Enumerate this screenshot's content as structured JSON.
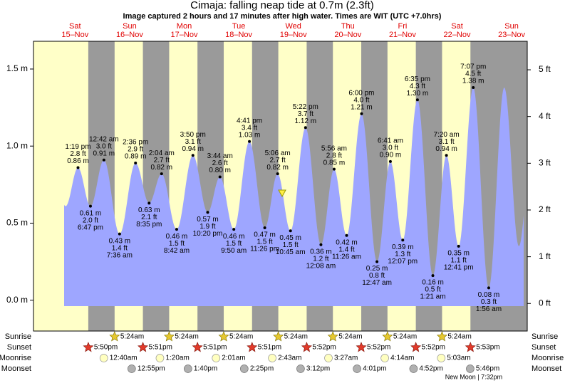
{
  "chart_data": {
    "type": "area",
    "title": "Cimaja: falling  neap tide at 0.7m (2.3ft)",
    "subtitle": "Image captured 2 hours and 17 minutes after high water. Times are WIT (UTC +7.0hrs)",
    "days": [
      {
        "name": "Sat",
        "date": "15–Nov"
      },
      {
        "name": "Sun",
        "date": "16–Nov"
      },
      {
        "name": "Mon",
        "date": "17–Nov"
      },
      {
        "name": "Tue",
        "date": "18–Nov"
      },
      {
        "name": "Wed",
        "date": "19–Nov"
      },
      {
        "name": "Thu",
        "date": "20–Nov"
      },
      {
        "name": "Fri",
        "date": "21–Nov"
      },
      {
        "name": "Sat",
        "date": "22–Nov"
      },
      {
        "name": "Sun",
        "date": "23–Nov"
      }
    ],
    "times": [
      "1:19 pm",
      "6:47 pm",
      "12:42 am",
      "7:36 am",
      "2:36 pm",
      "8:35 pm",
      "2:04 am",
      "8:42 am",
      "3:50 pm",
      "10:20 pm",
      "3:44 am",
      "9:50 am",
      "4:41 pm",
      "11:26 pm",
      "5:06 am",
      "10:45 am",
      "5:22 pm",
      "12:08 am",
      "5:56 am",
      "11:26 am",
      "6:00 pm",
      "12:47 am",
      "6:41 am",
      "12:07 pm",
      "6:35 pm",
      "1:21 am",
      "7:20 am",
      "12:41 pm",
      "7:07 pm",
      "1:56 am"
    ],
    "values": [
      0.86,
      0.61,
      0.91,
      0.43,
      0.89,
      0.63,
      0.82,
      0.46,
      0.94,
      0.57,
      0.8,
      0.46,
      1.03,
      0.47,
      0.82,
      0.45,
      1.12,
      0.36,
      0.85,
      0.42,
      1.21,
      0.25,
      0.9,
      0.39,
      1.3,
      0.16,
      0.94,
      0.35,
      1.38,
      0.08
    ],
    "value_labels": [
      "0.86 m",
      "0.61 m",
      "0.91 m",
      "0.43 m",
      "0.89 m",
      "0.63 m",
      "0.82 m",
      "0.46 m",
      "0.94 m",
      "0.57 m",
      "0.80 m",
      "0.46 m",
      "1.03 m",
      "0.47 m",
      "0.82 m",
      "0.45 m",
      "1.12 m",
      "0.36 m",
      "0.85 m",
      "0.42 m",
      "1.21 m",
      "0.25 m",
      "0.90 m",
      "0.39 m",
      "1.30 m",
      "0.16 m",
      "0.94 m",
      "0.35 m",
      "1.38 m",
      "0.08 m"
    ],
    "ft_labels": [
      "2.8 ft",
      "2.0 ft",
      "3.0 ft",
      "1.4 ft",
      "2.9 ft",
      "2.1 ft",
      "2.7 ft",
      "1.5 ft",
      "3.1 ft",
      "1.9 ft",
      "2.6 ft",
      "1.5 ft",
      "3.4 ft",
      "1.5 ft",
      "2.7 ft",
      "1.5 ft",
      "3.7 ft",
      "1.2 ft",
      "2.8 ft",
      "1.4 ft",
      "4.0 ft",
      "0.8 ft",
      "3.0 ft",
      "1.3 ft",
      "4.3 ft",
      "0.5 ft",
      "3.1 ft",
      "1.1 ft",
      "4.5 ft",
      "0.3 ft"
    ],
    "color": "#9ea6ff",
    "ylim": [
      -0.2,
      1.68
    ],
    "yticks": [
      {
        "value": 0,
        "label": "0.0 m"
      },
      {
        "value": 0.5,
        "label": "0.5 m"
      },
      {
        "value": 1,
        "label": "1.0 m"
      },
      {
        "value": 1.5,
        "label": "1.5 m"
      }
    ],
    "y2lim": [
      -0.59,
      5.61
    ],
    "y2ticks": [
      {
        "value": 0,
        "label": "0 ft"
      },
      {
        "value": 1,
        "label": "1 ft"
      },
      {
        "value": 2,
        "label": "2 ft"
      },
      {
        "value": 3,
        "label": "3 ft"
      },
      {
        "value": 4,
        "label": "4 ft"
      },
      {
        "value": 5,
        "label": "5 ft"
      }
    ],
    "rows": {
      "sunrise": {
        "label": "Sunrise",
        "times": [
          "5:24am",
          "5:24am",
          "5:24am",
          "5:24am",
          "5:24am",
          "5:24am",
          "5:24am"
        ]
      },
      "sunset": {
        "label": "Sunset",
        "times": [
          "5:50pm",
          "5:51pm",
          "5:51pm",
          "5:51pm",
          "5:52pm",
          "5:52pm",
          "5:52pm",
          "5:53pm"
        ]
      },
      "moonrise": {
        "label": "Moonrise",
        "times": [
          "12:40am",
          "1:20am",
          "2:01am",
          "2:43am",
          "3:27am",
          "4:14am",
          "5:03am"
        ]
      },
      "moonset": {
        "label": "Moonset",
        "times": [
          "12:55pm",
          "1:40pm",
          "2:25pm",
          "3:12pm",
          "4:01pm",
          "4:52pm",
          "5:46pm"
        ]
      }
    },
    "moon_phase": "New Moon | 7:32pm"
  }
}
